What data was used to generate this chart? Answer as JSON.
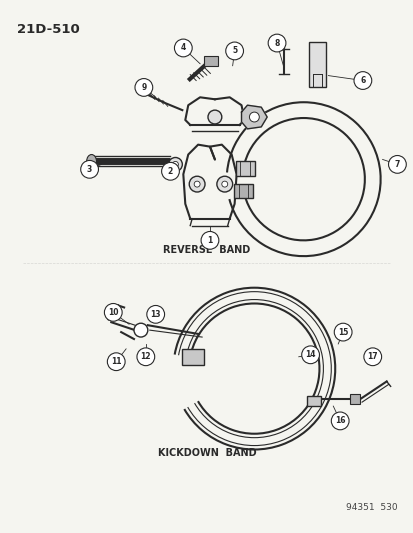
{
  "title": "21D-510",
  "bg_color": "#f5f5f0",
  "line_color": "#2a2a2a",
  "label_color": "#000000",
  "reverse_band_label": "REVERSE  BAND",
  "kickdown_band_label": "KICKDOWN  BAND",
  "watermark": "94351  530",
  "fig_width": 4.14,
  "fig_height": 5.33,
  "dpi": 100,
  "gray_fill": "#c8c8c8",
  "light_gray": "#e0e0e0",
  "mid_gray": "#b0b0b0"
}
